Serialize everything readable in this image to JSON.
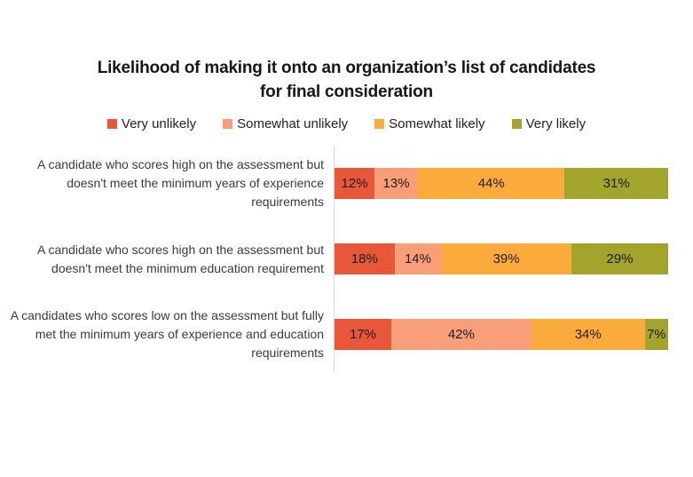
{
  "chart_data": {
    "type": "bar",
    "orientation": "horizontal",
    "stacked": true,
    "title": "Likelihood of making it onto an organization’s list of candidates for final consideration",
    "title_lines": [
      "Likelihood of making it onto an organization’s list of candidates",
      "for final consideration"
    ],
    "categories": [
      "A candidate who scores high on the assessment but doesn't meet the minimum years of experience requirements",
      "A candidate who scores high on the assessment but doesn't meet the minimum education requirement",
      "A candidates who scores low on the assessment but fully met the minimum years of experience and education requirements"
    ],
    "series": [
      {
        "name": "Very unlikely",
        "color": "#e9573b",
        "values": [
          12,
          18,
          17
        ]
      },
      {
        "name": "Somewhat unlikely",
        "color": "#f89e79",
        "values": [
          13,
          14,
          42
        ]
      },
      {
        "name": "Somewhat likely",
        "color": "#faab3c",
        "values": [
          44,
          39,
          34
        ]
      },
      {
        "name": "Very likely",
        "color": "#a2a42c",
        "values": [
          31,
          29,
          7
        ]
      }
    ],
    "value_suffix": "%",
    "xlim": [
      0,
      100
    ],
    "legend_position": "top",
    "grid": false,
    "axis_line_color": "#d8d8d8",
    "value_label_color": "#1d1d1d"
  }
}
